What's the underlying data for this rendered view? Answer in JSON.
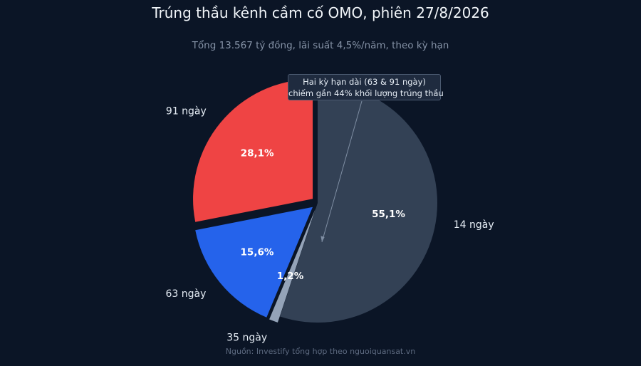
{
  "chart_data": {
    "type": "pie",
    "title": "Trúng thầu kênh cầm cố OMO, phiên 27/8/2026",
    "subtitle": "Tổng 13.567 tỷ đồng, lãi suất 4,5%/năm, theo kỳ hạn",
    "source": "Nguồn: Investify tổng hợp theo nguoiquansat.vn",
    "slices": [
      {
        "label": "14 ngày",
        "value": 55.1,
        "value_label": "55,1%",
        "color": "#334155",
        "exploded": false
      },
      {
        "label": "35 ngày",
        "value": 1.2,
        "value_label": "1,2%",
        "color": "#94a3b8",
        "exploded": true
      },
      {
        "label": "63 ngày",
        "value": 15.6,
        "value_label": "15,6%",
        "color": "#2563eb",
        "exploded": true
      },
      {
        "label": "91 ngày",
        "value": 28.1,
        "value_label": "28,1%",
        "color": "#ef4444",
        "exploded": true
      }
    ],
    "annotation": {
      "lines": [
        "Hai kỳ hạn dài (63 & 91 ngày)",
        "chiếm gần 44% khối lượng trúng thầu"
      ]
    }
  }
}
